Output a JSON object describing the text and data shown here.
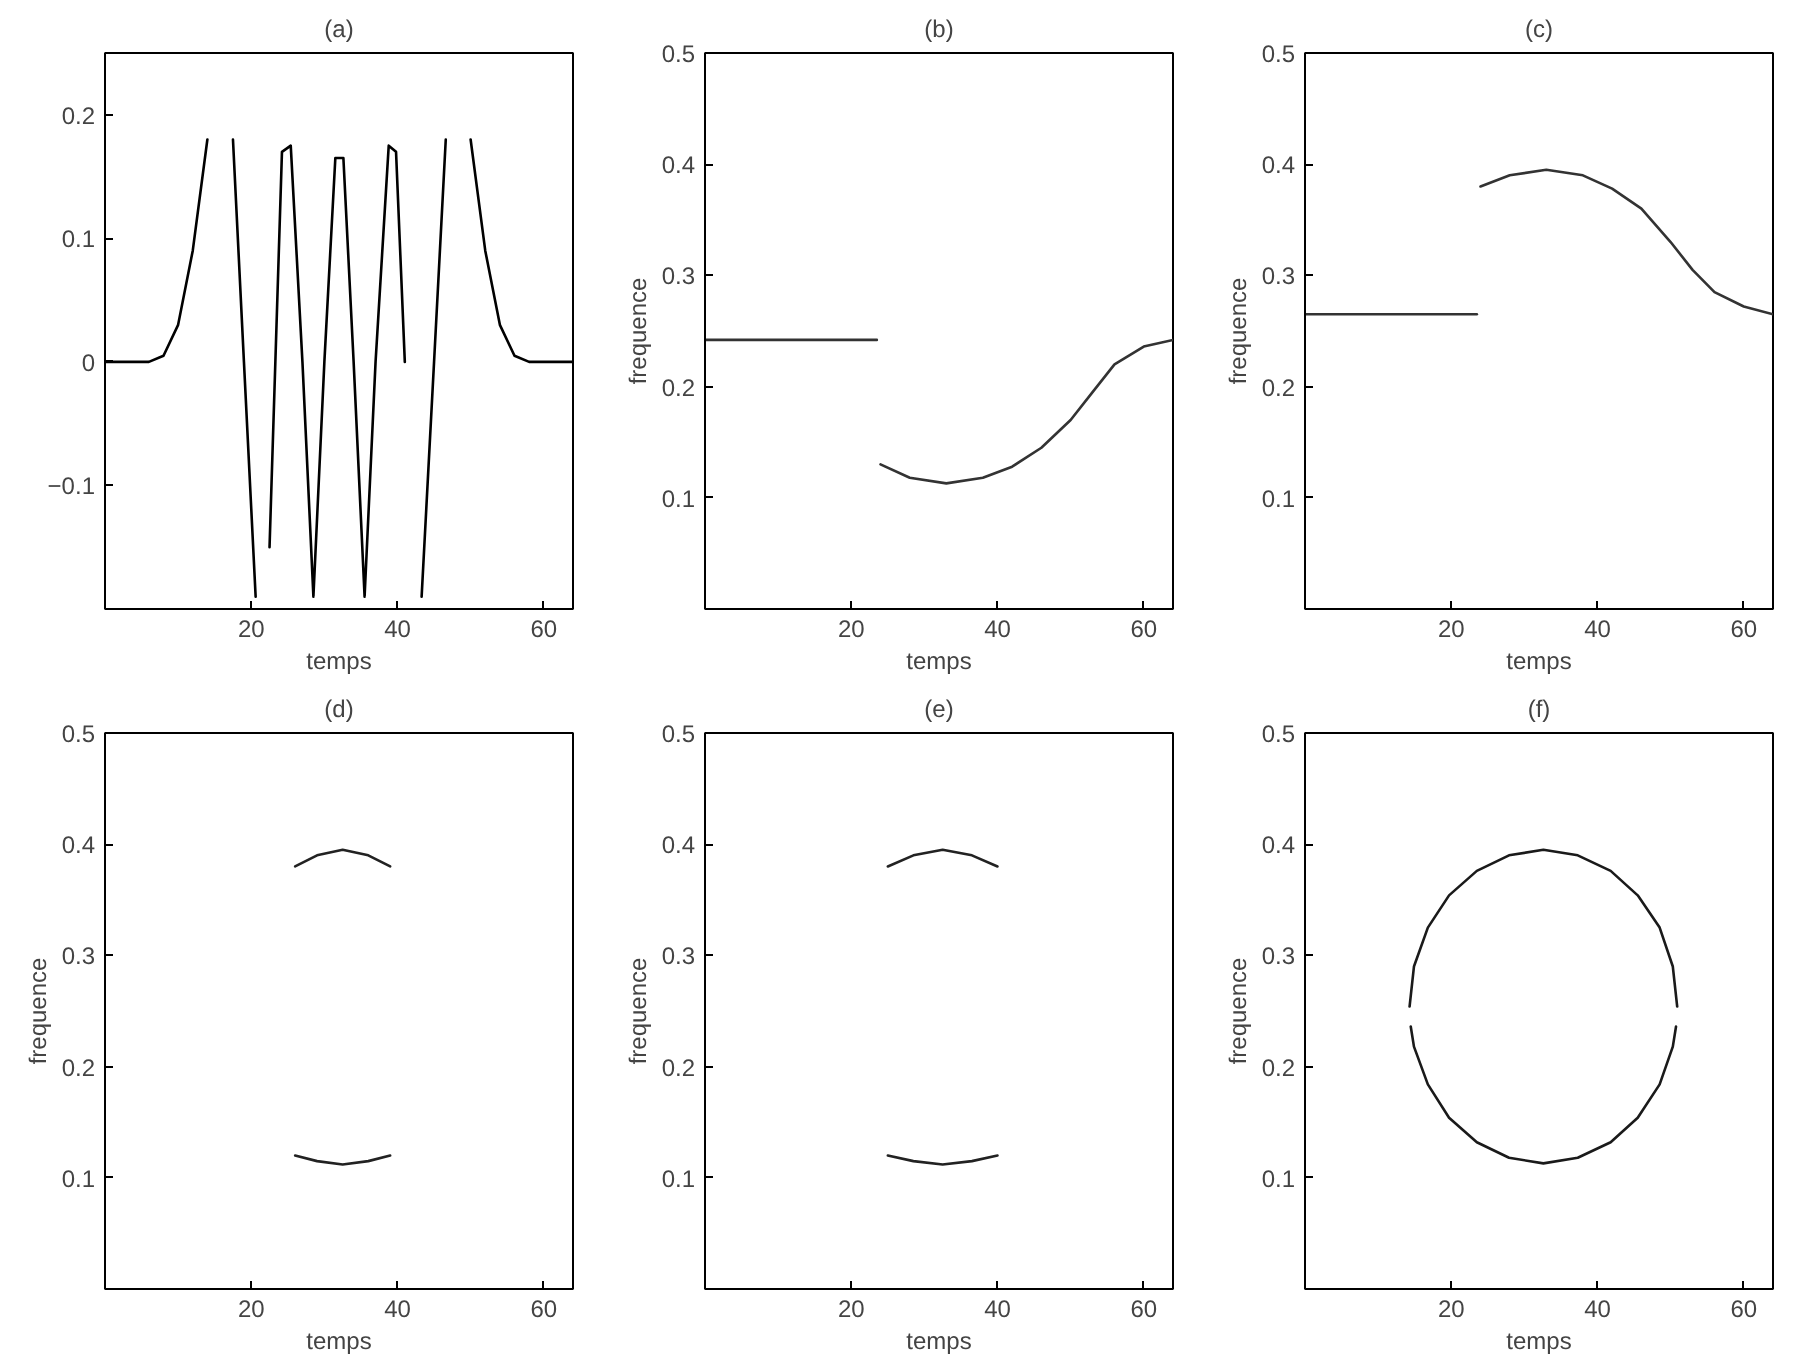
{
  "chart_data": [
    {
      "type": "line",
      "title": "(a)",
      "xlabel": "temps",
      "xlim": [
        0,
        64
      ],
      "ylim": [
        -0.2,
        0.25
      ],
      "xticks": [
        20,
        40,
        60
      ],
      "yticks": [
        -0.1,
        0,
        0.1,
        0.2
      ],
      "grid": false,
      "series": [
        {
          "color": "#000000",
          "x": [
            0,
            6,
            8,
            10,
            12,
            14,
            15.3,
            16.3,
            17.5,
            19,
            20.6,
            21.3,
            22.5,
            24.2,
            25.4,
            27,
            28.5,
            30,
            31.5,
            32.6,
            34,
            35.5,
            37,
            38.8,
            39.8,
            41,
            42.4,
            43.3,
            45,
            46.6,
            47.9,
            48.8,
            50,
            52,
            54,
            56,
            58,
            64
          ],
          "values": [
            0,
            0,
            0.005,
            0.03,
            0.09,
            0.18,
            null,
            null,
            0.18,
            0,
            -0.19,
            null,
            -0.15,
            0.17,
            0.175,
            0,
            -0.19,
            0,
            0.165,
            0.165,
            0,
            -0.19,
            0,
            0.175,
            0.17,
            0,
            null,
            -0.19,
            0,
            0.18,
            null,
            null,
            0.18,
            0.09,
            0.03,
            0.005,
            0,
            0
          ]
        }
      ]
    },
    {
      "type": "line",
      "title": "(b)",
      "xlabel": "temps",
      "ylabel": "frequence",
      "xlim": [
        0,
        64
      ],
      "ylim": [
        0,
        0.5
      ],
      "xticks": [
        20,
        40,
        60
      ],
      "yticks": [
        0.1,
        0.2,
        0.3,
        0.4,
        0.5
      ],
      "grid": false,
      "series": [
        {
          "color": "#333333",
          "x": [
            0,
            23.5
          ],
          "values": [
            0.242,
            0.242
          ]
        },
        {
          "color": "#333333",
          "x": [
            24,
            28,
            33,
            38,
            42,
            46,
            50,
            53,
            56,
            60,
            64
          ],
          "values": [
            0.13,
            0.118,
            0.113,
            0.118,
            0.128,
            0.145,
            0.17,
            0.195,
            0.22,
            0.236,
            0.242
          ]
        }
      ]
    },
    {
      "type": "line",
      "title": "(c)",
      "xlabel": "temps",
      "ylabel": "frequence",
      "xlim": [
        0,
        64
      ],
      "ylim": [
        0,
        0.5
      ],
      "xticks": [
        20,
        40,
        60
      ],
      "yticks": [
        0.1,
        0.2,
        0.3,
        0.4,
        0.5
      ],
      "grid": false,
      "series": [
        {
          "color": "#333333",
          "x": [
            0,
            23.5
          ],
          "values": [
            0.265,
            0.265
          ]
        },
        {
          "color": "#333333",
          "x": [
            24,
            28,
            33,
            38,
            42,
            46,
            50,
            53,
            56,
            60,
            64
          ],
          "values": [
            0.38,
            0.39,
            0.395,
            0.39,
            0.378,
            0.36,
            0.33,
            0.305,
            0.285,
            0.272,
            0.265
          ]
        }
      ]
    },
    {
      "type": "line",
      "title": "(d)",
      "xlabel": "temps",
      "ylabel": "frequence",
      "xlim": [
        0,
        64
      ],
      "ylim": [
        0,
        0.5
      ],
      "xticks": [
        20,
        40,
        60
      ],
      "yticks": [
        0.1,
        0.2,
        0.3,
        0.4,
        0.5
      ],
      "grid": false,
      "series": [
        {
          "color": "#222222",
          "x": [
            26,
            29,
            32.5,
            36,
            39
          ],
          "values": [
            0.38,
            0.39,
            0.395,
            0.39,
            0.38
          ]
        },
        {
          "color": "#222222",
          "x": [
            26,
            29,
            32.5,
            36,
            39
          ],
          "values": [
            0.12,
            0.115,
            0.112,
            0.115,
            0.12
          ]
        }
      ]
    },
    {
      "type": "line",
      "title": "(e)",
      "xlabel": "temps",
      "ylabel": "frequence",
      "xlim": [
        0,
        64
      ],
      "ylim": [
        0,
        0.5
      ],
      "xticks": [
        20,
        40,
        60
      ],
      "yticks": [
        0.1,
        0.2,
        0.3,
        0.4,
        0.5
      ],
      "grid": false,
      "series": [
        {
          "color": "#222222",
          "x": [
            25,
            28.5,
            32.5,
            36.5,
            40
          ],
          "values": [
            0.38,
            0.39,
            0.395,
            0.39,
            0.38
          ]
        },
        {
          "color": "#222222",
          "x": [
            25,
            28.5,
            32.5,
            36.5,
            40
          ],
          "values": [
            0.12,
            0.115,
            0.112,
            0.115,
            0.12
          ]
        }
      ]
    },
    {
      "type": "line",
      "title": "(f)",
      "xlabel": "temps",
      "ylabel": "frequence",
      "xlim": [
        0,
        64
      ],
      "ylim": [
        0,
        0.5
      ],
      "xticks": [
        20,
        40,
        60
      ],
      "yticks": [
        0.1,
        0.2,
        0.3,
        0.4,
        0.5
      ],
      "grid": false,
      "series": [
        {
          "color": "#1a1a1a",
          "x": [
            14.3,
            14.9,
            16.8,
            19.7,
            23.5,
            27.9,
            32.6,
            37.3,
            41.8,
            45.5,
            48.5,
            50.3,
            50.9
          ],
          "values": [
            0.254,
            0.29,
            0.325,
            0.354,
            0.376,
            0.39,
            0.395,
            0.39,
            0.376,
            0.354,
            0.325,
            0.29,
            0.254
          ]
        },
        {
          "color": "#1a1a1a",
          "x": [
            14.46,
            14.9,
            16.8,
            19.7,
            23.5,
            27.9,
            32.6,
            37.3,
            41.8,
            45.5,
            48.5,
            50.3,
            50.74
          ],
          "values": [
            0.236,
            0.218,
            0.184,
            0.154,
            0.132,
            0.118,
            0.113,
            0.118,
            0.132,
            0.154,
            0.184,
            0.218,
            0.236
          ]
        }
      ]
    }
  ]
}
